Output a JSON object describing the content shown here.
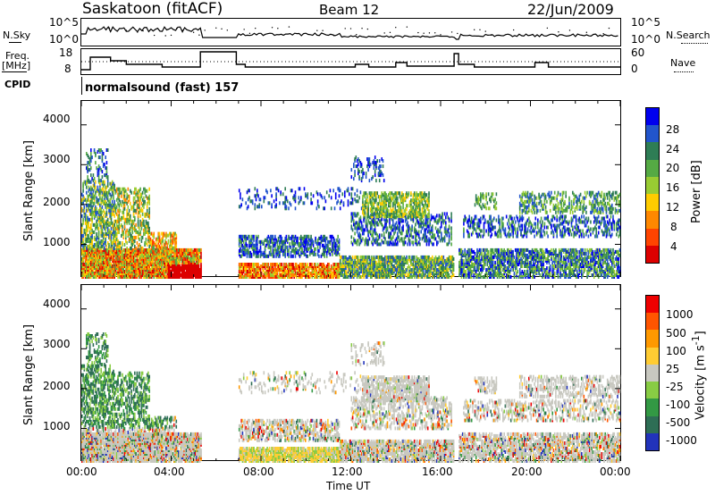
{
  "header": {
    "station": "Saskatoon (fitACF)",
    "beam": "Beam 12",
    "date": "22/Jun/2009"
  },
  "left_labels": {
    "nsky": "N.Sky",
    "freq_line1": "Freq.",
    "freq_line2": "[MHz]",
    "cpid": "CPID"
  },
  "right_labels": {
    "nsearch": "N.Search",
    "nave": "Nave"
  },
  "noise_panel": {
    "ytick_top": "10^5",
    "ytick_bottom": "10^0",
    "rtick_top": "10^5",
    "rtick_bottom": "10^0"
  },
  "freq_panel": {
    "ytick_top": "18",
    "ytick_bottom": "8",
    "rtick_top": "60",
    "rtick_bottom": "0"
  },
  "cpid_text": "normalsound (fast) 157",
  "colors": {
    "power": [
      "#0000ee",
      "#2255cc",
      "#2e7d55",
      "#55aa44",
      "#99cc33",
      "#ffcc00",
      "#ff8800",
      "#ff4400",
      "#dd0000"
    ],
    "velocity": [
      "#2233bb",
      "#2e6e55",
      "#339944",
      "#88cc44",
      "#c8c8c0",
      "#ffcc33",
      "#ff9900",
      "#ff5500",
      "#ee0000"
    ]
  },
  "chart_data": [
    {
      "type": "heatmap",
      "panel": "power",
      "ylabel": "Slant Range [km]",
      "yticks": [
        1000,
        2000,
        3000,
        4000
      ],
      "ylim": [
        180,
        4600
      ],
      "xlim": [
        0,
        24
      ],
      "colorbar_label": "Power [dB]",
      "colorbar_ticks": [
        "28",
        "24",
        "20",
        "16",
        "12",
        "8",
        "4"
      ]
    },
    {
      "type": "heatmap",
      "panel": "velocity",
      "ylabel": "Slant Range [km]",
      "yticks": [
        1000,
        2000,
        3000,
        4000
      ],
      "ylim": [
        180,
        4600
      ],
      "xlim": [
        0,
        24
      ],
      "xlabel": "Time UT",
      "xticks": [
        "00:00",
        "04:00",
        "08:00",
        "12:00",
        "16:00",
        "20:00",
        "00:00"
      ],
      "colorbar_label": "Velocity [m s^-1]",
      "colorbar_ticks": [
        "1000",
        "500",
        "100",
        "25",
        "-25",
        "-100",
        "-500",
        "-1000"
      ]
    }
  ]
}
